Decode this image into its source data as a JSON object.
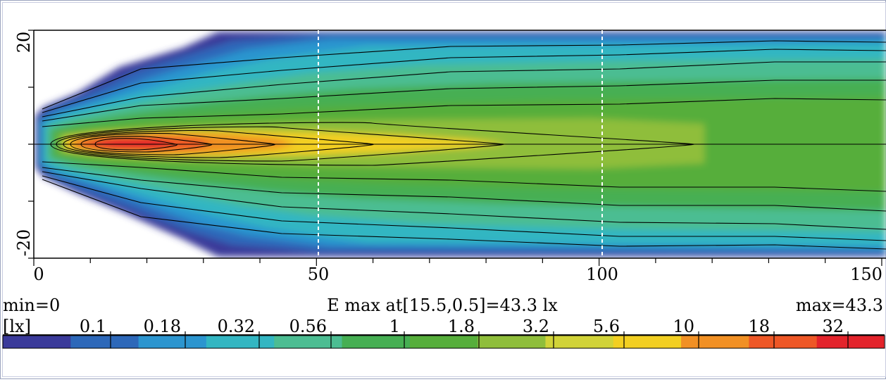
{
  "chart_data": {
    "type": "heatmap",
    "title": "E max at[15.5,0.5]=43.3 lx",
    "min_label": "min=0",
    "max_label": "max=43.3",
    "unit_label": "[lx]",
    "x": {
      "ticks": [
        "0",
        "50",
        "100",
        "150"
      ],
      "range": [
        0,
        150
      ],
      "minor_step": 10
    },
    "y": {
      "ticks": [
        "20",
        "-20"
      ],
      "range": [
        -20,
        20
      ],
      "minor_step": 10
    },
    "reference_lines_x": [
      50,
      100
    ],
    "peak": {
      "x": 15.5,
      "y": 0.5,
      "value": 43.3
    },
    "colorbar": {
      "tick_labels": [
        "0.1",
        "0.18",
        "0.32",
        "0.56",
        "1",
        "1.8",
        "3.2",
        "5.6",
        "10",
        "18",
        "32"
      ],
      "colors": [
        "#3a3a9a",
        "#2d68b9",
        "#2c95cf",
        "#33b6c2",
        "#4cbd92",
        "#46af53",
        "#56ae3b",
        "#8fbe3b",
        "#d1d338",
        "#f2cf22",
        "#f19024",
        "#ee5726",
        "#e3232b"
      ]
    },
    "iso_levels": [
      0.1,
      0.18,
      0.32,
      0.56,
      1,
      1.8,
      3.2,
      5.6,
      10,
      18,
      32
    ]
  }
}
